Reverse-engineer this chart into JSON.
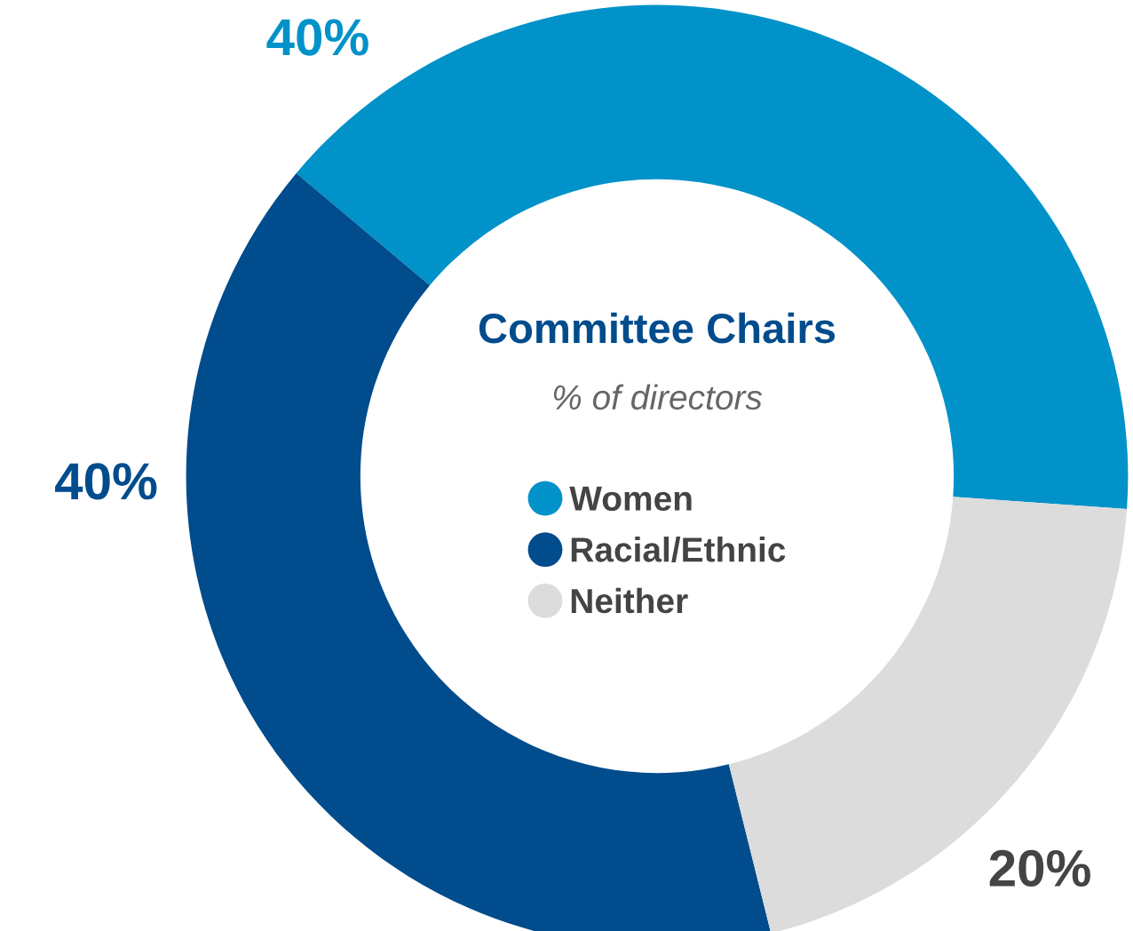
{
  "chart_data": {
    "type": "donut",
    "title": "Committee Chairs",
    "subtitle": "% of directors",
    "categories": [
      "Women",
      "Racial/Ethnic",
      "Neither"
    ],
    "values": [
      40,
      40,
      20
    ],
    "colors": [
      "#0092c9",
      "#004c8c",
      "#dcdcdc"
    ],
    "value_labels": [
      "40%",
      "40%",
      "20%"
    ],
    "legend": "center"
  }
}
